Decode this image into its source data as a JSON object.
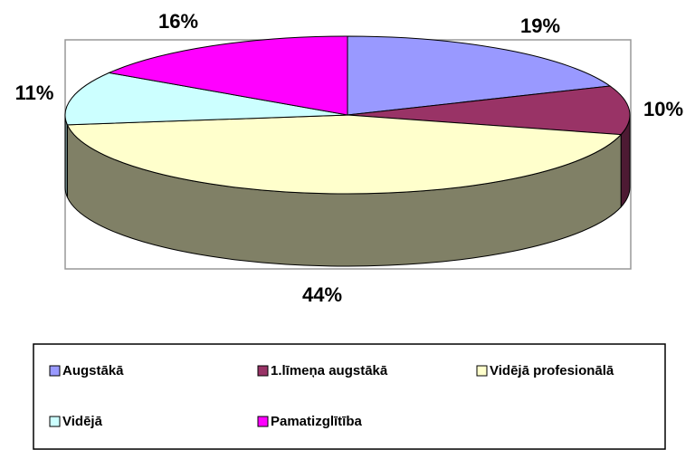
{
  "chart_data": {
    "type": "pie3d",
    "categories": [
      "Augstākā",
      "1.līmeņa augstākā",
      "Vidējā profesionālā",
      "Vidējā",
      "Pamatizglītība"
    ],
    "values": [
      19,
      10,
      44,
      11,
      16
    ],
    "value_labels": [
      "19%",
      "10%",
      "44%",
      "11%",
      "16%"
    ],
    "colors": [
      "#9999ff",
      "#993366",
      "#ffffcc",
      "#ccffff",
      "#ff00ff"
    ],
    "legend": "bottom"
  }
}
